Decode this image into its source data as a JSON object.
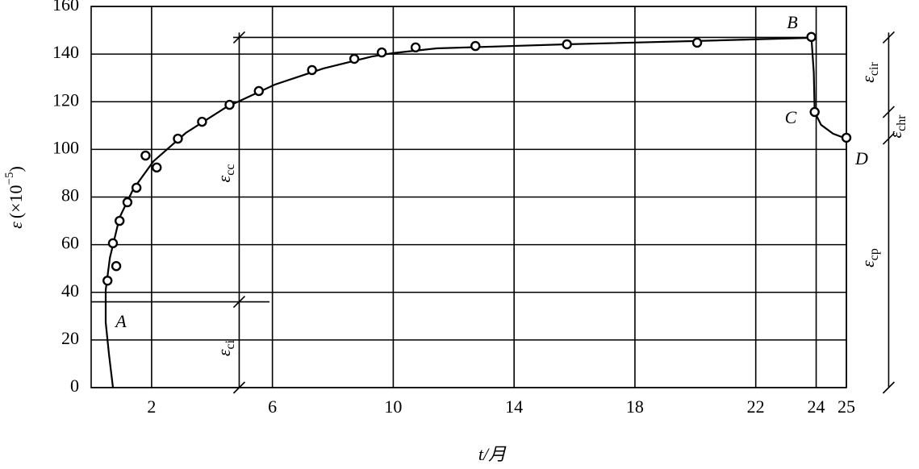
{
  "chart_data": {
    "type": "line",
    "x_label": "t/月",
    "y_label": [
      "ε",
      "(×10",
      "−5",
      ")"
    ],
    "color": "#000000",
    "xlim": [
      0,
      25
    ],
    "xticks": [
      2,
      6,
      10,
      14,
      18,
      22,
      24,
      25
    ],
    "ylim": [
      0,
      160
    ],
    "yticks": [
      0,
      20,
      40,
      60,
      80,
      100,
      120,
      140,
      160
    ],
    "grid": true,
    "curve": {
      "x": [
        0.72,
        0.59,
        0.48,
        0.48,
        0.62,
        0.94,
        1.39,
        2.06,
        3.13,
        4.47,
        6.08,
        7.69,
        9.3,
        10,
        11.44,
        15.72,
        20.01,
        23.76,
        23.84,
        23.92,
        23.95,
        24.16,
        24.56,
        25
      ],
      "values": [
        0,
        13.9,
        27.4,
        40.9,
        54.5,
        71.4,
        83.2,
        95,
        106.9,
        117.7,
        127.2,
        134,
        139,
        140.4,
        142.4,
        144.1,
        145.5,
        146.8,
        147.2,
        132.3,
        115.7,
        110.3,
        106.6,
        104.5
      ]
    },
    "points": {
      "x": [
        0.54,
        0.72,
        0.83,
        0.94,
        1.2,
        1.5,
        1.8,
        2.17,
        2.87,
        3.67,
        4.58,
        5.55,
        7.31,
        8.71,
        9.62,
        10.74,
        12.72,
        15.75,
        20.06,
        23.84,
        23.95,
        25
      ],
      "values": [
        44.9,
        60.6,
        51,
        70,
        77.8,
        83.9,
        97.4,
        92.4,
        104.5,
        111.6,
        118.7,
        124.5,
        133.3,
        138,
        140.7,
        142.8,
        143.4,
        144.1,
        144.8,
        147.2,
        115.7,
        104.9
      ]
    },
    "reference_lines": [
      {
        "y": 36,
        "x": [
          0,
          5.9
        ]
      },
      {
        "y": 147,
        "x": [
          4.7,
          23.8
        ]
      }
    ],
    "dimension_marks": [
      {
        "x": 4.9,
        "levels": [
          0,
          36,
          147
        ]
      },
      {
        "x": 26.4,
        "levels": [
          0,
          104.5,
          115.7,
          147
        ]
      }
    ],
    "point_labels": [
      "A",
      "B",
      "C",
      "D"
    ],
    "strain_labels": [
      {
        "symbol": "ε",
        "sub": "cc"
      },
      {
        "symbol": "ε",
        "sub": "ci"
      },
      {
        "symbol": "ε",
        "sub": "cir"
      },
      {
        "symbol": "ε",
        "sub": "chr"
      },
      {
        "symbol": "ε",
        "sub": "cp"
      }
    ]
  }
}
